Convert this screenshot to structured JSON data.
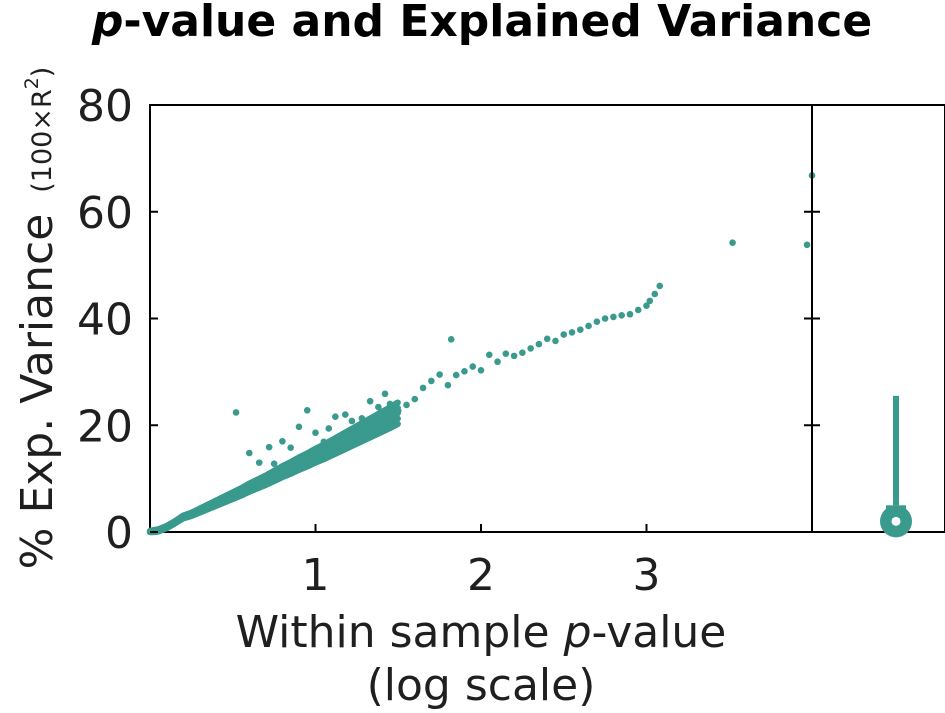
{
  "chart_data": {
    "type": "scatter",
    "title": {
      "italic_part": "p",
      "rest": "-value and Explained Variance"
    },
    "xlabel": {
      "line1_prefix": "Within sample ",
      "line1_italic": "p",
      "line1_suffix": "-value",
      "line2": "(log scale)"
    },
    "ylabel": {
      "main": "% Exp. Variance",
      "sub": "(100×R",
      "sub_sup": "2",
      "sub_close": ")"
    },
    "x_scale_note": "log scale",
    "xlim": [
      0,
      4
    ],
    "ylim": [
      0,
      80
    ],
    "xticks": [
      1,
      2,
      3
    ],
    "xtick_labels": [
      "1",
      "2",
      "3"
    ],
    "yticks": [
      0,
      20,
      40,
      60,
      80
    ],
    "ytick_labels": [
      "0",
      "20",
      "40",
      "60",
      "80"
    ],
    "marker_color": "#3a9a8e",
    "series": [
      {
        "trend": {
          "y_scale": 15.55,
          "exponent": 1.12
        },
        "dense_points": [
          [
            0.0,
            0.0
          ],
          [
            0.05,
            0.3
          ],
          [
            0.1,
            0.9
          ],
          [
            0.15,
            1.8
          ],
          [
            0.2,
            2.8
          ],
          [
            0.25,
            3.3
          ],
          [
            0.3,
            4.0
          ],
          [
            0.35,
            4.7
          ],
          [
            0.4,
            5.4
          ],
          [
            0.45,
            6.1
          ],
          [
            0.5,
            6.8
          ],
          [
            0.55,
            7.5
          ],
          [
            0.6,
            8.3
          ],
          [
            0.65,
            9.0
          ],
          [
            0.7,
            9.7
          ],
          [
            0.75,
            10.5
          ],
          [
            0.8,
            11.3
          ],
          [
            0.85,
            12.0
          ],
          [
            0.9,
            12.8
          ],
          [
            0.95,
            13.5
          ],
          [
            1.0,
            14.3
          ],
          [
            1.05,
            15.0
          ],
          [
            1.1,
            15.8
          ],
          [
            1.15,
            16.6
          ],
          [
            1.2,
            17.4
          ],
          [
            1.25,
            18.2
          ],
          [
            1.3,
            19.0
          ],
          [
            1.35,
            19.8
          ],
          [
            1.4,
            20.6
          ],
          [
            1.45,
            21.4
          ],
          [
            1.5,
            22.3
          ]
        ],
        "points": [
          [
            0.52,
            22.4
          ],
          [
            0.6,
            14.8
          ],
          [
            0.66,
            13.0
          ],
          [
            0.72,
            15.9
          ],
          [
            0.75,
            12.8
          ],
          [
            0.8,
            17.0
          ],
          [
            0.85,
            15.8
          ],
          [
            0.9,
            19.7
          ],
          [
            0.95,
            22.8
          ],
          [
            1.0,
            18.6
          ],
          [
            1.05,
            16.9
          ],
          [
            1.08,
            19.4
          ],
          [
            1.12,
            21.6
          ],
          [
            1.18,
            22.0
          ],
          [
            1.22,
            20.8
          ],
          [
            1.28,
            21.3
          ],
          [
            1.33,
            24.5
          ],
          [
            1.38,
            23.4
          ],
          [
            1.42,
            25.9
          ],
          [
            1.45,
            24.0
          ],
          [
            1.5,
            22.7
          ],
          [
            1.55,
            23.8
          ],
          [
            1.6,
            24.9
          ],
          [
            1.65,
            27.0
          ],
          [
            1.7,
            28.3
          ],
          [
            1.75,
            29.5
          ],
          [
            1.8,
            27.5
          ],
          [
            1.82,
            36.1
          ],
          [
            1.85,
            29.4
          ],
          [
            1.9,
            30.1
          ],
          [
            1.95,
            31.0
          ],
          [
            2.0,
            30.3
          ],
          [
            2.05,
            33.2
          ],
          [
            2.1,
            31.9
          ],
          [
            2.15,
            33.4
          ],
          [
            2.2,
            33.0
          ],
          [
            2.25,
            33.6
          ],
          [
            2.3,
            34.4
          ],
          [
            2.35,
            35.2
          ],
          [
            2.4,
            36.2
          ],
          [
            2.45,
            35.8
          ],
          [
            2.5,
            37.0
          ],
          [
            2.55,
            37.4
          ],
          [
            2.6,
            37.9
          ],
          [
            2.65,
            38.6
          ],
          [
            2.7,
            39.4
          ],
          [
            2.75,
            40.0
          ],
          [
            2.8,
            40.3
          ],
          [
            2.85,
            40.6
          ],
          [
            2.9,
            40.8
          ],
          [
            2.95,
            41.6
          ],
          [
            3.0,
            42.4
          ],
          [
            3.02,
            43.3
          ],
          [
            3.05,
            44.6
          ],
          [
            3.08,
            46.1
          ],
          [
            3.52,
            54.2
          ],
          [
            3.97,
            53.8
          ],
          [
            4.0,
            66.8
          ]
        ]
      }
    ],
    "side_panel": {
      "type": "boxplot",
      "median": 2.0,
      "q1": 0.0,
      "q3": 5.0,
      "whisker_high": 25.5,
      "whisker_low": 0.0
    }
  }
}
